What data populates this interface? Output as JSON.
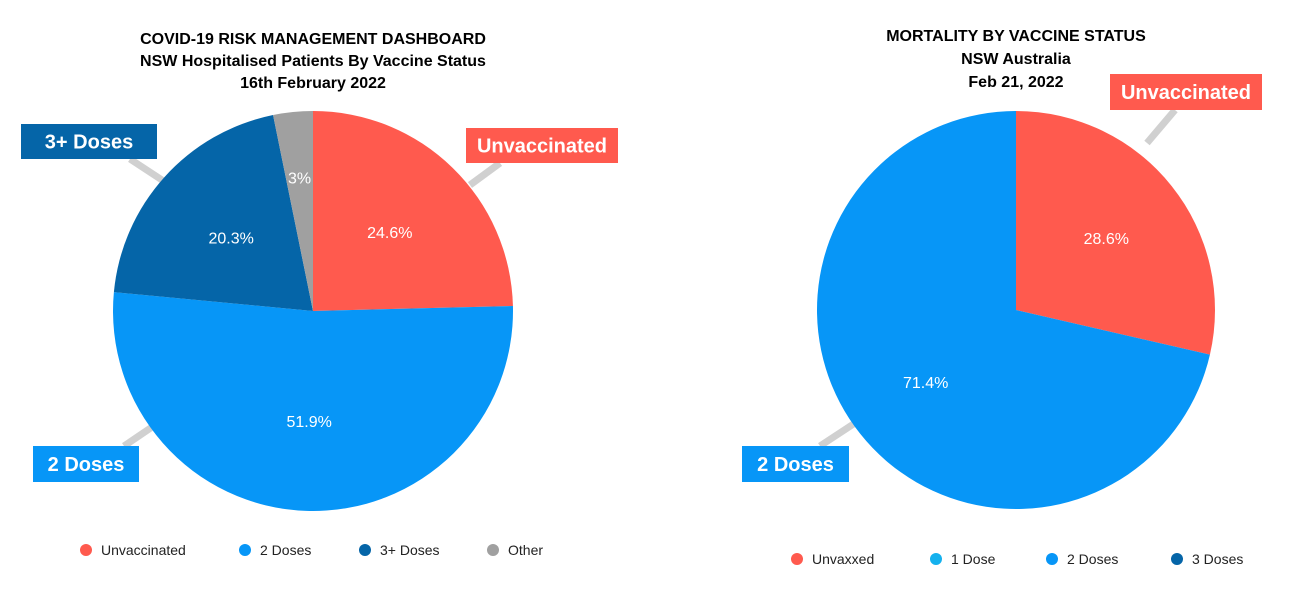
{
  "chart_data": [
    {
      "type": "pie",
      "title": "COVID-19 RISK MANAGEMENT DASHBOARD",
      "subtitle_lines": [
        "NSW Hospitalised Patients By Vaccine Status",
        "16th February 2022"
      ],
      "slices": [
        {
          "name": "Unvaccinated",
          "value": 24.6,
          "label": "24.6%",
          "color": "#ff5a4e",
          "callout": "Unvaccinated"
        },
        {
          "name": "2 Doses",
          "value": 51.9,
          "label": "51.9%",
          "color": "#0796f7",
          "callout": "2 Doses"
        },
        {
          "name": "3+ Doses",
          "value": 20.3,
          "label": "20.3%",
          "color": "#0565a8",
          "callout": "3+ Doses"
        },
        {
          "name": "Other",
          "value": 3.2,
          "label": "3%",
          "color": "#a0a0a0",
          "callout": ""
        }
      ],
      "legend": [
        {
          "name": "Unvaccinated",
          "color": "#ff5a4e"
        },
        {
          "name": "2 Doses",
          "color": "#0796f7"
        },
        {
          "name": "3+ Doses",
          "color": "#0565a8"
        },
        {
          "name": "Other",
          "color": "#a0a0a0"
        }
      ],
      "legend_position": "bottom"
    },
    {
      "type": "pie",
      "title": "MORTALITY BY VACCINE STATUS",
      "subtitle_lines": [
        "NSW Australia",
        "Feb 21, 2022"
      ],
      "slices": [
        {
          "name": "Unvaxxed",
          "value": 28.6,
          "label": "28.6%",
          "color": "#ff5a4e",
          "callout": "Unvaccinated"
        },
        {
          "name": "2 Doses",
          "value": 71.4,
          "label": "71.4%",
          "color": "#0796f7",
          "callout": "2 Doses"
        }
      ],
      "legend": [
        {
          "name": "Unvaxxed",
          "color": "#ff5a4e"
        },
        {
          "name": "1 Dose",
          "color": "#14b1ee"
        },
        {
          "name": "2 Doses",
          "color": "#0796f7"
        },
        {
          "name": "3 Doses",
          "color": "#0565a8"
        }
      ],
      "legend_position": "bottom"
    }
  ]
}
